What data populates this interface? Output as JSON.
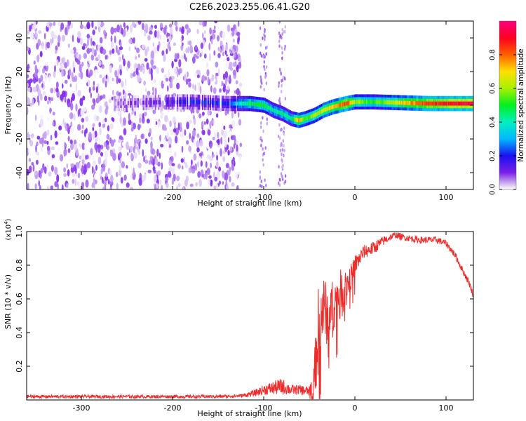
{
  "title": "C2E6.2023.255.06.41.G20",
  "chart_data": [
    {
      "type": "heatmap",
      "title": "C2E6.2023.255.06.41.G20",
      "xlabel": "Height of straight line (km)",
      "ylabel": "Frequency (Hz)",
      "xlim": [
        -360,
        130
      ],
      "ylim": [
        -50,
        50
      ],
      "xticks": [
        -300,
        -200,
        -100,
        0,
        100
      ],
      "yticks": [
        -40,
        -20,
        0,
        20,
        40
      ],
      "colorbar": {
        "label": "Normalized spectral amplitude",
        "range": [
          0,
          1
        ],
        "ticks": [
          "0.0",
          "0.2",
          "0.4",
          "0.6",
          "0.8"
        ],
        "colormap": "rainbow (purple-blue-cyan-green-yellow-red-magenta)"
      },
      "ridge": {
        "x": [
          -265,
          -200,
          -180,
          -140,
          -130,
          -115,
          -100,
          -90,
          -80,
          -70,
          -62,
          -55,
          -45,
          -35,
          -25,
          -10,
          0,
          20,
          50,
          80,
          130
        ],
        "y": [
          1,
          2,
          2,
          1,
          1,
          1,
          0,
          -3,
          -5,
          -8,
          -9,
          -8,
          -6,
          -3,
          -1,
          1,
          2,
          2,
          1.5,
          1,
          1
        ],
        "amplitude": [
          0.05,
          0.15,
          0.2,
          0.2,
          0.35,
          0.45,
          0.5,
          0.4,
          0.45,
          0.4,
          0.75,
          0.5,
          0.6,
          0.65,
          0.7,
          0.85,
          0.6,
          0.5,
          0.7,
          0.85,
          0.95
        ]
      },
      "noise_region": {
        "x": [
          -360,
          -125
        ],
        "y": [
          -50,
          50
        ],
        "amplitude": [
          0.0,
          0.1
        ]
      }
    },
    {
      "type": "line",
      "xlabel": "Height of straight line (km)",
      "ylabel": "SNR (10 * v/v)",
      "y_multiplier": "(x10^4)",
      "xlim": [
        -360,
        130
      ],
      "ylim": [
        0,
        1.0
      ],
      "xticks": [
        -300,
        -200,
        -100,
        0,
        100
      ],
      "yticks": [
        "0.2",
        "0.4",
        "0.6",
        "0.8",
        "1.0"
      ],
      "color": "#ee2c2c",
      "series": [
        {
          "x": [
            -360,
            -300,
            -250,
            -200,
            -150,
            -125,
            -110,
            -100,
            -90,
            -80,
            -70,
            -60,
            -50,
            -45,
            -40,
            -35,
            -30,
            -25,
            -20,
            -15,
            -10,
            -5,
            0,
            10,
            20,
            30,
            40,
            45,
            50,
            60,
            70,
            80,
            90,
            100,
            110,
            120,
            125,
            130
          ],
          "y": [
            0.02,
            0.02,
            0.02,
            0.02,
            0.02,
            0.025,
            0.04,
            0.06,
            0.07,
            0.08,
            0.06,
            0.06,
            0.05,
            0.12,
            0.4,
            0.55,
            0.5,
            0.55,
            0.6,
            0.66,
            0.68,
            0.72,
            0.8,
            0.88,
            0.9,
            0.94,
            0.97,
            0.98,
            0.97,
            0.96,
            0.95,
            0.95,
            0.95,
            0.93,
            0.86,
            0.75,
            0.7,
            0.62
          ],
          "spread": [
            0.01,
            0.01,
            0.01,
            0.01,
            0.01,
            0.01,
            0.02,
            0.03,
            0.04,
            0.05,
            0.03,
            0.03,
            0.03,
            0.1,
            0.28,
            0.2,
            0.18,
            0.16,
            0.14,
            0.12,
            0.1,
            0.08,
            0.06,
            0.04,
            0.04,
            0.03,
            0.02,
            0.02,
            0.02,
            0.02,
            0.02,
            0.02,
            0.02,
            0.02,
            0.02,
            0.02,
            0.02,
            0.02
          ]
        }
      ]
    }
  ]
}
